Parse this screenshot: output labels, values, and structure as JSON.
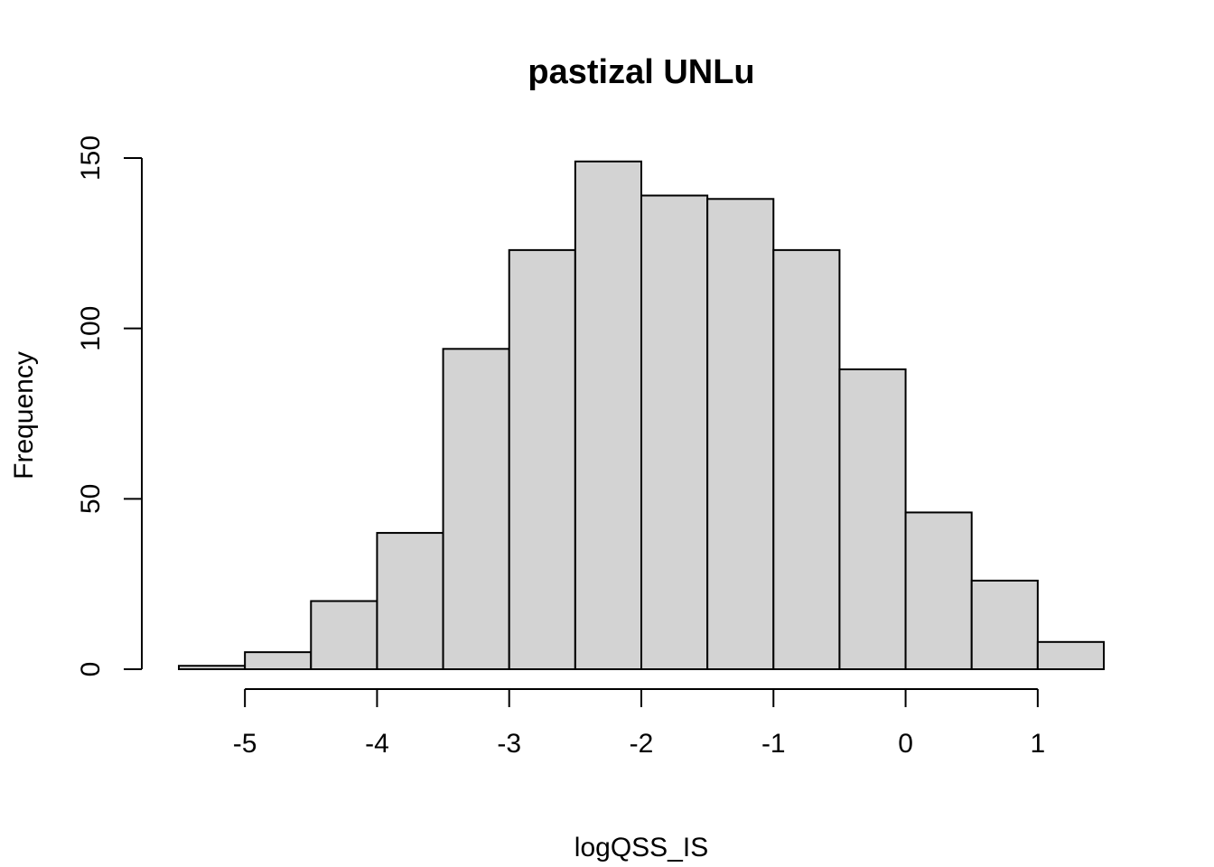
{
  "chart_data": {
    "type": "bar",
    "title": "pastizal UNLu",
    "xlabel": "logQSS_IS",
    "ylabel": "Frequency",
    "bin_edges": [
      -5.5,
      -5.0,
      -4.5,
      -4.0,
      -3.5,
      -3.0,
      -2.5,
      -2.0,
      -1.5,
      -1.0,
      -0.5,
      0.0,
      0.5,
      1.0,
      1.5
    ],
    "values": [
      1,
      5,
      20,
      40,
      94,
      123,
      149,
      139,
      138,
      123,
      88,
      46,
      26,
      8
    ],
    "xlim": [
      -5.5,
      1.5
    ],
    "ylim": [
      0,
      150
    ],
    "x_ticks": [
      -5,
      -4,
      -3,
      -2,
      -1,
      0,
      1
    ],
    "x_tick_labels": [
      "-5",
      "-4",
      "-3",
      "-2",
      "-1",
      "0",
      "1"
    ],
    "y_ticks": [
      0,
      50,
      100,
      150
    ],
    "y_tick_labels": [
      "0",
      "50",
      "100",
      "150"
    ],
    "bar_color": "#d3d3d3",
    "grid": false,
    "legend": "none"
  }
}
